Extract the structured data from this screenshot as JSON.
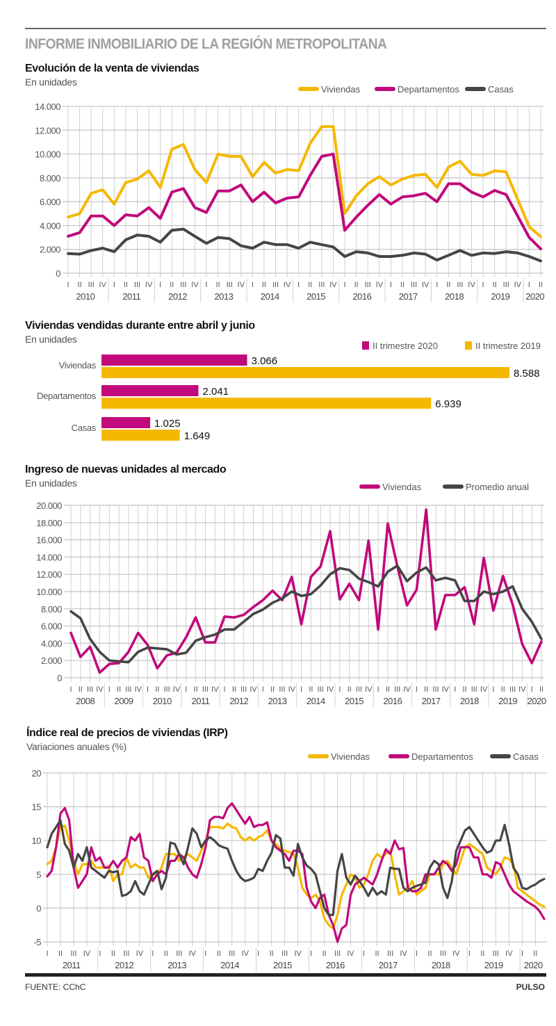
{
  "header": {
    "title": "INFORME INMOBILIARIO DE LA REGIÓN METROPOLITANA"
  },
  "footer": {
    "source": "FUENTE: CChC",
    "brand": "PULSO"
  },
  "colors": {
    "viviendas": "#f5b800",
    "departamentos": "#c0097a",
    "casas": "#454545"
  },
  "chart_data": [
    {
      "type": "line",
      "title": "Evolución de la venta de viviendas",
      "subtitle": "En unidades",
      "ylim": [
        0,
        14000
      ],
      "yticks": [
        "0",
        "2.000",
        "4.000",
        "6.000",
        "8.000",
        "10.000",
        "12.000",
        "14.000"
      ],
      "ytick_values": [
        0,
        2000,
        4000,
        6000,
        8000,
        10000,
        12000,
        14000
      ],
      "grid": true,
      "legend": "top-right",
      "x_frequency": "quarterly",
      "start": "2010-I",
      "end": "2020-II",
      "quarter_labels": [
        "I",
        "II",
        "III",
        "IV"
      ],
      "years": [
        "2010",
        "2011",
        "2012",
        "2013",
        "2014",
        "2015",
        "2016",
        "2017",
        "2018",
        "2019",
        "2020"
      ],
      "series": [
        {
          "name": "Viviendas",
          "color": "#f5b800",
          "values": [
            4700,
            5000,
            6700,
            7000,
            5800,
            7600,
            7900,
            8600,
            7200,
            10400,
            10800,
            8700,
            7600,
            10000,
            9800,
            9800,
            8100,
            9300,
            8400,
            8700,
            8600,
            10900,
            12300,
            12300,
            5000,
            6500,
            7500,
            8100,
            7400,
            7900,
            8200,
            8300,
            7200,
            8900,
            9400,
            8300,
            8200,
            8588,
            8500,
            6200,
            3900,
            3066
          ]
        },
        {
          "name": "Departamentos",
          "color": "#c0097a",
          "values": [
            3100,
            3400,
            4800,
            4800,
            4000,
            4900,
            4800,
            5500,
            4600,
            6800,
            7100,
            5500,
            5100,
            6900,
            6900,
            7400,
            6000,
            6800,
            5900,
            6300,
            6400,
            8200,
            9800,
            10000,
            3600,
            4700,
            5700,
            6600,
            5800,
            6400,
            6500,
            6700,
            6000,
            7500,
            7500,
            6800,
            6400,
            6939,
            6600,
            4800,
            3000,
            2041
          ]
        },
        {
          "name": "Casas",
          "color": "#454545",
          "values": [
            1650,
            1600,
            1900,
            2100,
            1800,
            2800,
            3200,
            3100,
            2600,
            3600,
            3700,
            3100,
            2500,
            3000,
            2900,
            2300,
            2100,
            2600,
            2400,
            2400,
            2100,
            2600,
            2400,
            2200,
            1400,
            1800,
            1700,
            1400,
            1400,
            1500,
            1700,
            1600,
            1100,
            1500,
            1900,
            1500,
            1700,
            1649,
            1800,
            1700,
            1400,
            1025
          ]
        }
      ]
    },
    {
      "type": "bar",
      "orientation": "horizontal",
      "title": "Viviendas vendidas durante entre abril y junio",
      "subtitle": "En unidades",
      "legend": "top-right",
      "categories": [
        "Viviendas",
        "Departamentos",
        "Casas"
      ],
      "series": [
        {
          "name": "II trimestre 2020",
          "color": "#c0097a",
          "values": [
            3066,
            2041,
            1025
          ],
          "labels": [
            "3.066",
            "2.041",
            "1.025"
          ]
        },
        {
          "name": "II trimestre 2019",
          "color": "#f5b800",
          "values": [
            8588,
            6939,
            1649
          ],
          "labels": [
            "8.588",
            "6.939",
            "1.649"
          ]
        }
      ]
    },
    {
      "type": "line",
      "title": "Ingreso de nuevas unidades al mercado",
      "subtitle": "En unidades",
      "ylim": [
        0,
        20000
      ],
      "yticks": [
        "0",
        "2.000",
        "4.000",
        "6.000",
        "8.000",
        "10.000",
        "12.000",
        "14.000",
        "16.000",
        "18.000",
        "20.000"
      ],
      "ytick_values": [
        0,
        2000,
        4000,
        6000,
        8000,
        10000,
        12000,
        14000,
        16000,
        18000,
        20000
      ],
      "grid": true,
      "legend": "top-right",
      "x_frequency": "quarterly",
      "start": "2008-I",
      "end": "2020-II",
      "quarter_labels": [
        "I",
        "II",
        "III",
        "IV"
      ],
      "years": [
        "2008",
        "2009",
        "2010",
        "2011",
        "2012",
        "2013",
        "2014",
        "2015",
        "2016",
        "2017",
        "2018",
        "2019",
        "2020"
      ],
      "series": [
        {
          "name": "Viviendas",
          "color": "#c0097a",
          "values": [
            5200,
            2400,
            3600,
            600,
            1600,
            1700,
            3000,
            5200,
            3800,
            1100,
            2600,
            2900,
            4700,
            7000,
            4100,
            4100,
            7100,
            7000,
            7300,
            8200,
            9000,
            10100,
            9000,
            11700,
            6200,
            11700,
            12900,
            17000,
            9100,
            10900,
            9000,
            15900,
            5600,
            17900,
            12900,
            8400,
            10200,
            19500,
            5600,
            9600,
            9600,
            10500,
            6200,
            13900,
            7800,
            11800,
            8500,
            3900,
            1700,
            4200
          ]
        },
        {
          "name": "Promedio anual",
          "color": "#454545",
          "values": [
            7700,
            6900,
            4500,
            3000,
            2000,
            1900,
            1800,
            3000,
            3500,
            3400,
            3300,
            2700,
            2900,
            4300,
            4700,
            5000,
            5600,
            5600,
            6500,
            7400,
            7900,
            8700,
            9200,
            10000,
            9500,
            9700,
            10700,
            12000,
            12700,
            12500,
            11500,
            11100,
            10600,
            12300,
            13000,
            11200,
            12200,
            12800,
            11300,
            11600,
            11300,
            8900,
            8900,
            10000,
            9700,
            10000,
            10600,
            8000,
            6500,
            4500
          ]
        }
      ]
    },
    {
      "type": "line",
      "title": "Índice real de precios de viviendas (IRP)",
      "subtitle": "Variaciones anuales (%)",
      "ylim": [
        -5,
        20
      ],
      "yticks": [
        "-5",
        "0",
        "5",
        "10",
        "15",
        "20"
      ],
      "ytick_values": [
        -5,
        0,
        5,
        10,
        15,
        20
      ],
      "grid": true,
      "legend": "top-right",
      "x_frequency": "monthly",
      "start": "2011-01",
      "end": "2020-06",
      "quarter_labels": [
        "I",
        "II",
        "III",
        "IV"
      ],
      "years": [
        "2011",
        "2012",
        "2013",
        "2014",
        "2015",
        "2016",
        "2017",
        "2018",
        "2019",
        "2020"
      ],
      "series": [
        {
          "name": "Viviendas",
          "color": "#f5b800",
          "values": [
            6.5,
            7,
            9,
            12,
            12.2,
            10,
            7,
            5,
            6.5,
            6.5,
            7,
            6,
            6,
            6,
            6.2,
            4,
            5,
            5,
            7.5,
            6,
            6.5,
            6,
            6,
            4.5,
            5,
            5,
            6,
            8,
            8,
            8,
            7,
            7.5,
            8,
            7.5,
            7,
            8.5,
            10,
            12,
            12,
            12,
            11.8,
            12.5,
            12,
            11.8,
            10.5,
            10,
            10.5,
            10,
            10.5,
            10.8,
            11.5,
            10,
            9.5,
            8.8,
            8.5,
            8.3,
            8,
            6,
            3,
            2,
            1.5,
            2,
            1,
            -1.5,
            -2.5,
            -3,
            -1,
            2,
            3.5,
            5,
            4.5,
            3,
            3.5,
            5,
            7,
            8,
            7.5,
            8,
            8.5,
            5,
            2,
            2.5,
            3,
            4,
            2,
            2.5,
            3,
            5,
            5,
            5,
            6.5,
            7,
            6,
            5,
            7,
            9,
            9.5,
            9,
            8.5,
            8,
            6,
            5.5,
            5,
            6,
            7.5,
            7.3,
            6.5,
            3,
            2.5,
            2,
            1.5,
            1,
            0.5,
            0.2
          ]
        },
        {
          "name": "Departamentos",
          "color": "#c0097a",
          "values": [
            4.7,
            5.5,
            9,
            14,
            14.8,
            13,
            6,
            3,
            4,
            5,
            9,
            7,
            7.5,
            6,
            6,
            7,
            6,
            7,
            7.5,
            10.5,
            10,
            11,
            7.5,
            7,
            4,
            5,
            5.5,
            5,
            7,
            7,
            8,
            7.5,
            6,
            5,
            4.5,
            6.5,
            9,
            13,
            13.5,
            13.5,
            13.3,
            14.8,
            15.5,
            14.5,
            13.5,
            12.5,
            13.5,
            12,
            12.3,
            12.3,
            12.7,
            10,
            9,
            8.5,
            8,
            7,
            8.5,
            8.5,
            8,
            3,
            1,
            0,
            1.5,
            2,
            -1,
            -2.5,
            -5,
            -3,
            -2.5,
            2,
            3.5,
            4,
            4.5,
            4,
            3.5,
            5,
            7,
            8.7,
            8,
            10,
            8.7,
            8.9,
            3,
            2.5,
            2.5,
            3,
            5,
            5,
            5,
            6,
            7,
            6.5,
            5.5,
            6.5,
            9,
            9,
            9,
            7.5,
            7.5,
            5,
            5,
            4.5,
            6.8,
            6.5,
            5,
            3.5,
            2.5,
            2,
            1.5,
            1,
            0.6,
            0.2,
            -0.5,
            -1.6
          ]
        },
        {
          "name": "Casas",
          "color": "#454545",
          "values": [
            9,
            11,
            12,
            13,
            9.5,
            8.5,
            6,
            8,
            7,
            9,
            6,
            5.5,
            5,
            4.5,
            5.5,
            5.3,
            5.5,
            1.8,
            2,
            2.5,
            4,
            2.5,
            2,
            3.5,
            5,
            5.5,
            2.8,
            4.5,
            9.7,
            9.5,
            8,
            6.5,
            9,
            11.8,
            11,
            9,
            10,
            10.5,
            10,
            9.3,
            9,
            8.8,
            7,
            5.5,
            4.5,
            4,
            4.2,
            4.5,
            5.8,
            5.5,
            7,
            8.2,
            10.8,
            10.3,
            6,
            6,
            4.8,
            9.5,
            7.5,
            6.3,
            5.8,
            5,
            2.5,
            0,
            -1,
            -1,
            5.5,
            8,
            4.5,
            3.5,
            4.8,
            4,
            3,
            1.8,
            3,
            2,
            2.5,
            2,
            6,
            5.8,
            5.8,
            3,
            2.5,
            3,
            3.3,
            3.5,
            3.8,
            6,
            7,
            6.5,
            3,
            1.5,
            4,
            8.5,
            10,
            11.5,
            12,
            11,
            10,
            9,
            8.2,
            8.5,
            10,
            10,
            12.3,
            9.5,
            6,
            5,
            3,
            2.8,
            3.2,
            3.5,
            4,
            4.3
          ]
        }
      ]
    }
  ]
}
